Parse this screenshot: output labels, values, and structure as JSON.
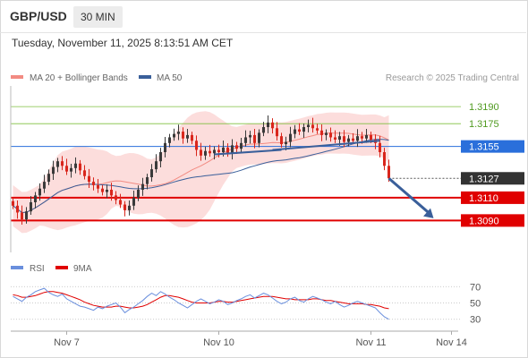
{
  "header": {
    "symbol": "GBP/USD",
    "timeframe": "30 MIN",
    "timestamp": "Tuesday, November 11, 2025 8:13:51 AM CET"
  },
  "legend": {
    "ma20_label": "MA 20 + Bollinger Bands",
    "ma50_label": "MA 50",
    "credit": "Research © 2025 Trading Central",
    "rsi_label": "RSI",
    "rsi_ma_label": "9MA"
  },
  "colors": {
    "candle_up": "#3a3a3a",
    "candle_down": "#d9261c",
    "ma20": "#f28b82",
    "bollinger_band": "#fbd5d3",
    "ma50": "#3a5f9a",
    "green_level": "#7fbf3f",
    "blue_level": "#2a6fdb",
    "red_level": "#e00000",
    "dark_level": "#333333",
    "rsi": "#6a8fdd",
    "rsi_ma": "#e00000",
    "arrow": "#3a5f9a"
  },
  "chart_data": [
    {
      "type": "candlestick",
      "title": "GBP/USD",
      "timeframe": "30 MIN",
      "ylim": [
        1.3062,
        1.3205
      ],
      "x_ticks": [
        "Nov 7",
        "Nov 10",
        "Nov 11",
        "Nov 14"
      ],
      "levels": [
        {
          "value": 1.319,
          "label": "1.3190",
          "style": "green"
        },
        {
          "value": 1.3175,
          "label": "1.3175",
          "style": "green"
        },
        {
          "value": 1.3155,
          "label": "1.3155",
          "style": "blue"
        },
        {
          "value": 1.3127,
          "label": "1.3127",
          "style": "dark"
        },
        {
          "value": 1.311,
          "label": "1.3110",
          "style": "red"
        },
        {
          "value": 1.309,
          "label": "1.3090",
          "style": "red"
        }
      ],
      "close": [
        1.3103,
        1.3097,
        1.3091,
        1.3098,
        1.3106,
        1.3112,
        1.3118,
        1.3124,
        1.3131,
        1.3137,
        1.3142,
        1.3138,
        1.3133,
        1.3136,
        1.314,
        1.3134,
        1.3129,
        1.3124,
        1.3121,
        1.3118,
        1.3115,
        1.3117,
        1.3112,
        1.3108,
        1.3104,
        1.3099,
        1.3103,
        1.311,
        1.3117,
        1.3122,
        1.3128,
        1.3135,
        1.3142,
        1.315,
        1.3158,
        1.3163,
        1.3166,
        1.3168,
        1.3162,
        1.3165,
        1.316,
        1.3152,
        1.3147,
        1.3151,
        1.3149,
        1.3152,
        1.315,
        1.3154,
        1.3149,
        1.3156,
        1.3153,
        1.3158,
        1.3163,
        1.3165,
        1.3158,
        1.3167,
        1.3172,
        1.3176,
        1.3171,
        1.3164,
        1.3157,
        1.3159,
        1.3166,
        1.317,
        1.3168,
        1.3172,
        1.3174,
        1.3171,
        1.3169,
        1.3165,
        1.3167,
        1.3163,
        1.3161,
        1.3164,
        1.3159,
        1.3162,
        1.316,
        1.3164,
        1.3162,
        1.3165,
        1.3161,
        1.3158,
        1.315,
        1.3138,
        1.3127
      ],
      "series": [
        {
          "name": "MA 20 + Bollinger Bands"
        },
        {
          "name": "MA 50"
        }
      ],
      "trendlines": [
        {
          "from": {
            "index": 58,
            "value": 1.3152
          },
          "to": {
            "index": 82,
            "value": 1.316
          },
          "color": "ma50"
        },
        {
          "from": {
            "index": 45,
            "value": 1.3148
          },
          "to": {
            "index": 60,
            "value": 1.3152
          },
          "color": "ma50"
        }
      ],
      "forecast_arrow": {
        "from": {
          "index": 84,
          "value": 1.3127
        },
        "to": {
          "index": 94,
          "value": 1.3092
        }
      }
    },
    {
      "type": "line",
      "title": "RSI",
      "ylim": [
        22,
        78
      ],
      "y_ticks": [
        70,
        50,
        30
      ],
      "series": [
        {
          "name": "RSI",
          "values": [
            58,
            55,
            52,
            57,
            60,
            64,
            66,
            68,
            63,
            60,
            58,
            61,
            55,
            52,
            49,
            46,
            45,
            43,
            41,
            45,
            43,
            46,
            48,
            50,
            45,
            38,
            42,
            45,
            49,
            53,
            58,
            62,
            59,
            64,
            61,
            57,
            54,
            50,
            47,
            44,
            48,
            52,
            55,
            52,
            49,
            51,
            54,
            52,
            48,
            50,
            53,
            55,
            58,
            60,
            56,
            59,
            62,
            60,
            56,
            52,
            49,
            51,
            55,
            57,
            53,
            51,
            55,
            58,
            56,
            54,
            51,
            49,
            52,
            48,
            45,
            47,
            50,
            52,
            50,
            48,
            46,
            44,
            38,
            33,
            30
          ]
        },
        {
          "name": "9MA",
          "values": [
            60,
            59,
            57,
            57,
            58,
            59,
            61,
            63,
            64,
            64,
            63,
            62,
            60,
            58,
            56,
            54,
            51,
            49,
            47,
            46,
            45,
            45,
            45,
            46,
            46,
            45,
            44,
            44,
            45,
            46,
            48,
            51,
            54,
            57,
            59,
            59,
            58,
            57,
            55,
            53,
            51,
            50,
            50,
            50,
            50,
            51,
            52,
            52,
            51,
            51,
            52,
            53,
            54,
            55,
            56,
            57,
            58,
            58,
            58,
            57,
            56,
            55,
            55,
            54,
            54,
            54,
            54,
            55,
            55,
            54,
            53,
            53,
            52,
            51,
            50,
            49,
            49,
            49,
            49,
            48,
            48,
            47,
            46,
            44,
            43
          ]
        }
      ]
    }
  ]
}
